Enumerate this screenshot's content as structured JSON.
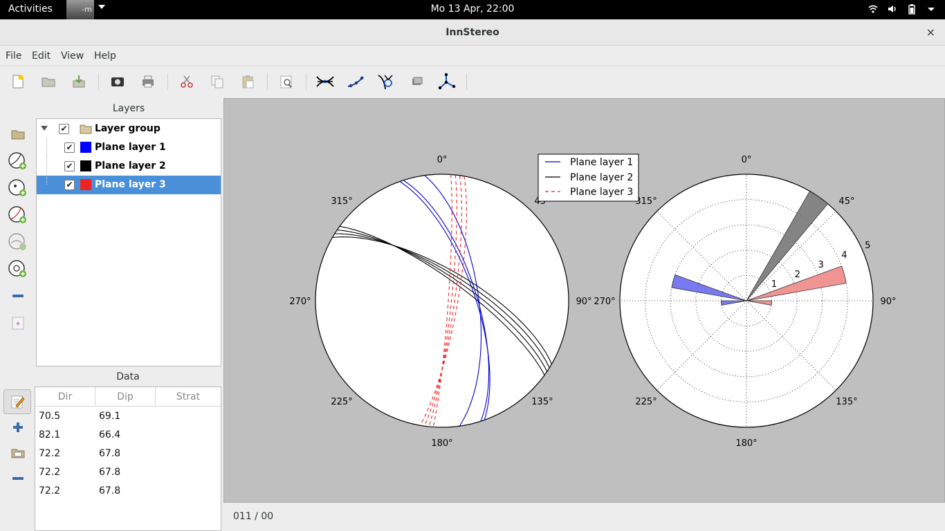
{
  "topbar": {
    "activities": "Activities",
    "clock": "Mo 13 Apr, 22:00",
    "app_label": "-m"
  },
  "window": {
    "title": "InnStereo",
    "close": "×"
  },
  "menu": {
    "file": "File",
    "edit": "Edit",
    "view": "View",
    "help": "Help"
  },
  "toolbar": {
    "icons": [
      "new-icon",
      "open-icon",
      "save-icon",
      "screenshot-icon",
      "print-icon",
      "cut-icon",
      "copy-icon",
      "paste-icon",
      "properties-icon",
      "plane-intersect-icon",
      "linear-icon",
      "small-circle-icon",
      "fault-icon",
      "eigenvector-icon"
    ]
  },
  "layers": {
    "title": "Layers",
    "group": {
      "label": "Layer group",
      "checked": true
    },
    "items": [
      {
        "label": "Plane layer 1",
        "color": "#0000ff",
        "checked": true
      },
      {
        "label": "Plane layer 2",
        "color": "#000000",
        "checked": true
      },
      {
        "label": "Plane layer 3",
        "color": "#ee2222",
        "checked": true
      }
    ]
  },
  "data": {
    "title": "Data",
    "headers": [
      "Dir",
      "Dip",
      "Strat"
    ],
    "rows": [
      [
        "70.5",
        "69.1",
        ""
      ],
      [
        "82.1",
        "66.4",
        ""
      ],
      [
        "72.2",
        "67.8",
        ""
      ],
      [
        "72.2",
        "67.8",
        ""
      ],
      [
        "72.2",
        "67.8",
        ""
      ]
    ]
  },
  "stereonet": {
    "tick_labels": [
      "0°",
      "45°",
      "90°",
      "135°",
      "180°",
      "225°",
      "270°",
      "315°"
    ],
    "legend": [
      {
        "name": "Plane layer 1",
        "color": "#0000cc",
        "style": "solid"
      },
      {
        "name": "Plane layer 2",
        "color": "#000000",
        "style": "solid"
      },
      {
        "name": "Plane layer 3",
        "color": "#ee2222",
        "style": "dashed"
      }
    ],
    "great_circles": {
      "layer1": [
        [
          70.5,
          69.1
        ],
        [
          82.1,
          66.4
        ],
        [
          72.2,
          67.8
        ]
      ],
      "layer2": [
        [
          30,
          70
        ],
        [
          32,
          72
        ],
        [
          34,
          74
        ],
        [
          36,
          76
        ]
      ],
      "layer3": [
        [
          100,
          80
        ],
        [
          98,
          82
        ],
        [
          96,
          84
        ],
        [
          94,
          86
        ]
      ]
    }
  },
  "chart_data": {
    "type": "rose",
    "tick_labels": [
      "0°",
      "45°",
      "90°",
      "135°",
      "180°",
      "225°",
      "270°",
      "315°"
    ],
    "radial_ticks": [
      "1",
      "2",
      "3",
      "4",
      "5"
    ],
    "rmax": 5,
    "series": [
      {
        "name": "Plane layer 1",
        "color": "#6a6aee",
        "bins": [
          {
            "dir": 285,
            "value": 3
          },
          {
            "dir": 265,
            "value": 1
          }
        ]
      },
      {
        "name": "Plane layer 2",
        "color": "#777777",
        "bins": [
          {
            "dir": 35,
            "value": 5
          }
        ]
      },
      {
        "name": "Plane layer 3",
        "color": "#ee8888",
        "bins": [
          {
            "dir": 75,
            "value": 4
          },
          {
            "dir": 95,
            "value": 1
          }
        ]
      }
    ]
  },
  "status": {
    "text": "011 / 00"
  }
}
